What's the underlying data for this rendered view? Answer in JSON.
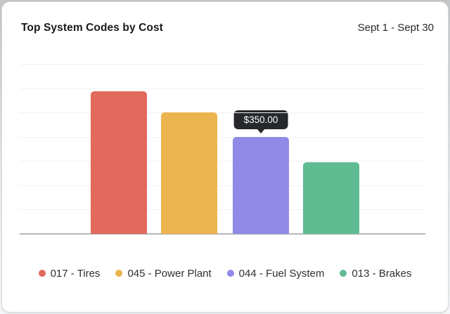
{
  "header": {
    "title": "Top System Codes by Cost",
    "date_range": "Sept 1 - Sept 30"
  },
  "chart_data": {
    "type": "bar",
    "title": "Top System Codes by Cost",
    "categories": [
      "017 - Tires",
      "045 - Power Plant",
      "044 - Fuel System",
      "013 - Brakes"
    ],
    "values": [
      515,
      440,
      350,
      260
    ],
    "colors": [
      "#e2695c",
      "#ecb44e",
      "#918ae6",
      "#5fbb92"
    ],
    "xlabel": "",
    "ylabel": "",
    "ylim": [
      0,
      615
    ],
    "grid": true,
    "gridline_intervals": 7,
    "axis_tick_labels_visible": false,
    "legend_position": "bottom",
    "tooltip": {
      "bar_index": 2,
      "label": "$350.00"
    }
  },
  "theme": {
    "gridline_color": "#f0f1f2",
    "baseline_color": "#b3b5b7",
    "tooltip_bg": "#26282c",
    "tooltip_text_color": "#ffffff"
  }
}
